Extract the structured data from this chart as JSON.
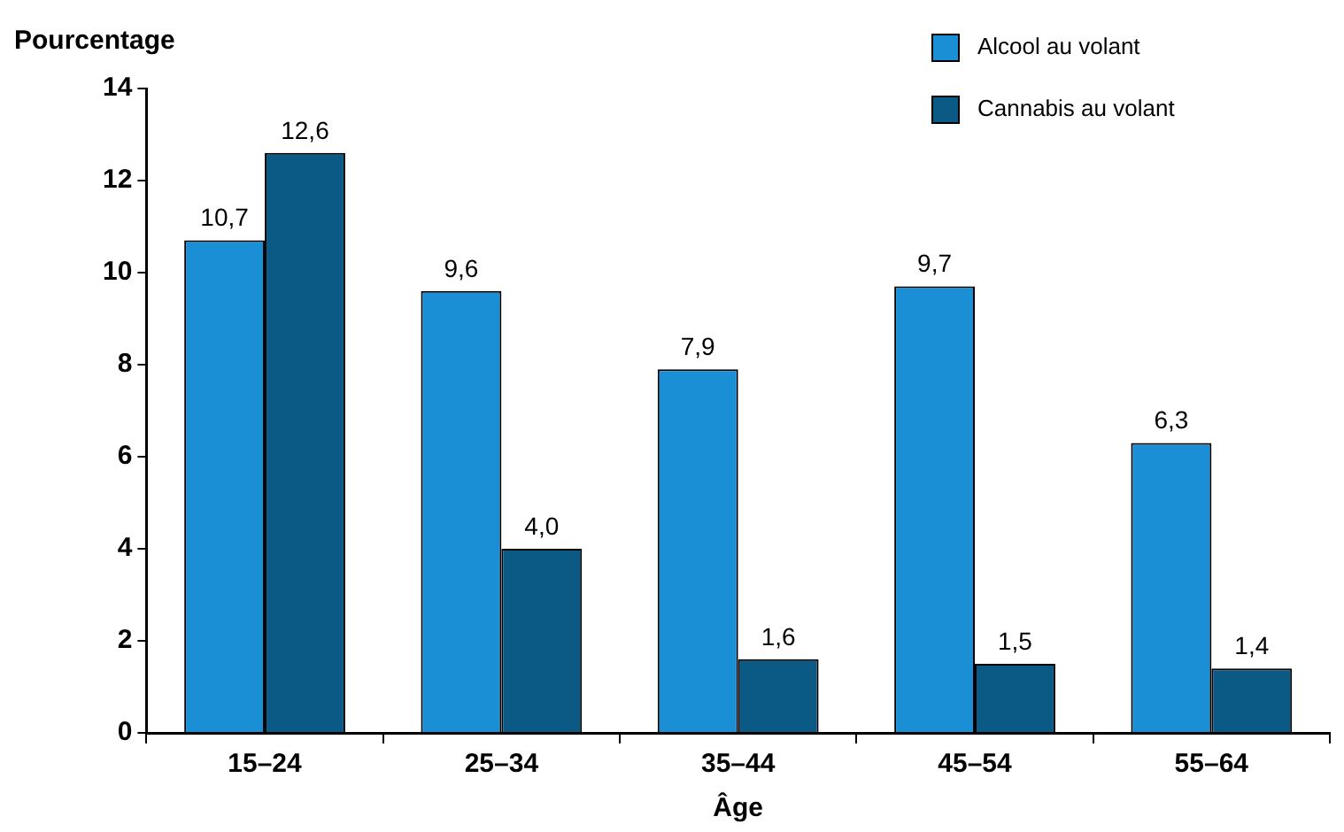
{
  "chart_data": {
    "type": "bar",
    "ylabel": "Pourcentage",
    "xlabel": "Âge",
    "categories": [
      "15–24",
      "25–34",
      "35–44",
      "45–54",
      "55–64"
    ],
    "series": [
      {
        "name": "Alcool au volant",
        "color": "#1a8fd6",
        "values": [
          10.7,
          9.6,
          7.9,
          9.7,
          6.3
        ],
        "value_labels": [
          "10,7",
          "9,6",
          "7,9",
          "9,7",
          "6,3"
        ]
      },
      {
        "name": "Cannabis au volant",
        "color": "#0b5a86",
        "values": [
          12.6,
          4.0,
          1.6,
          1.5,
          1.4
        ],
        "value_labels": [
          "12,6",
          "4,0",
          "1,6",
          "1,5",
          "1,4"
        ]
      }
    ],
    "ylim": [
      0,
      14
    ],
    "yticks": [
      0,
      2,
      4,
      6,
      8,
      10,
      12,
      14
    ],
    "grid": false,
    "legend": "top right"
  }
}
